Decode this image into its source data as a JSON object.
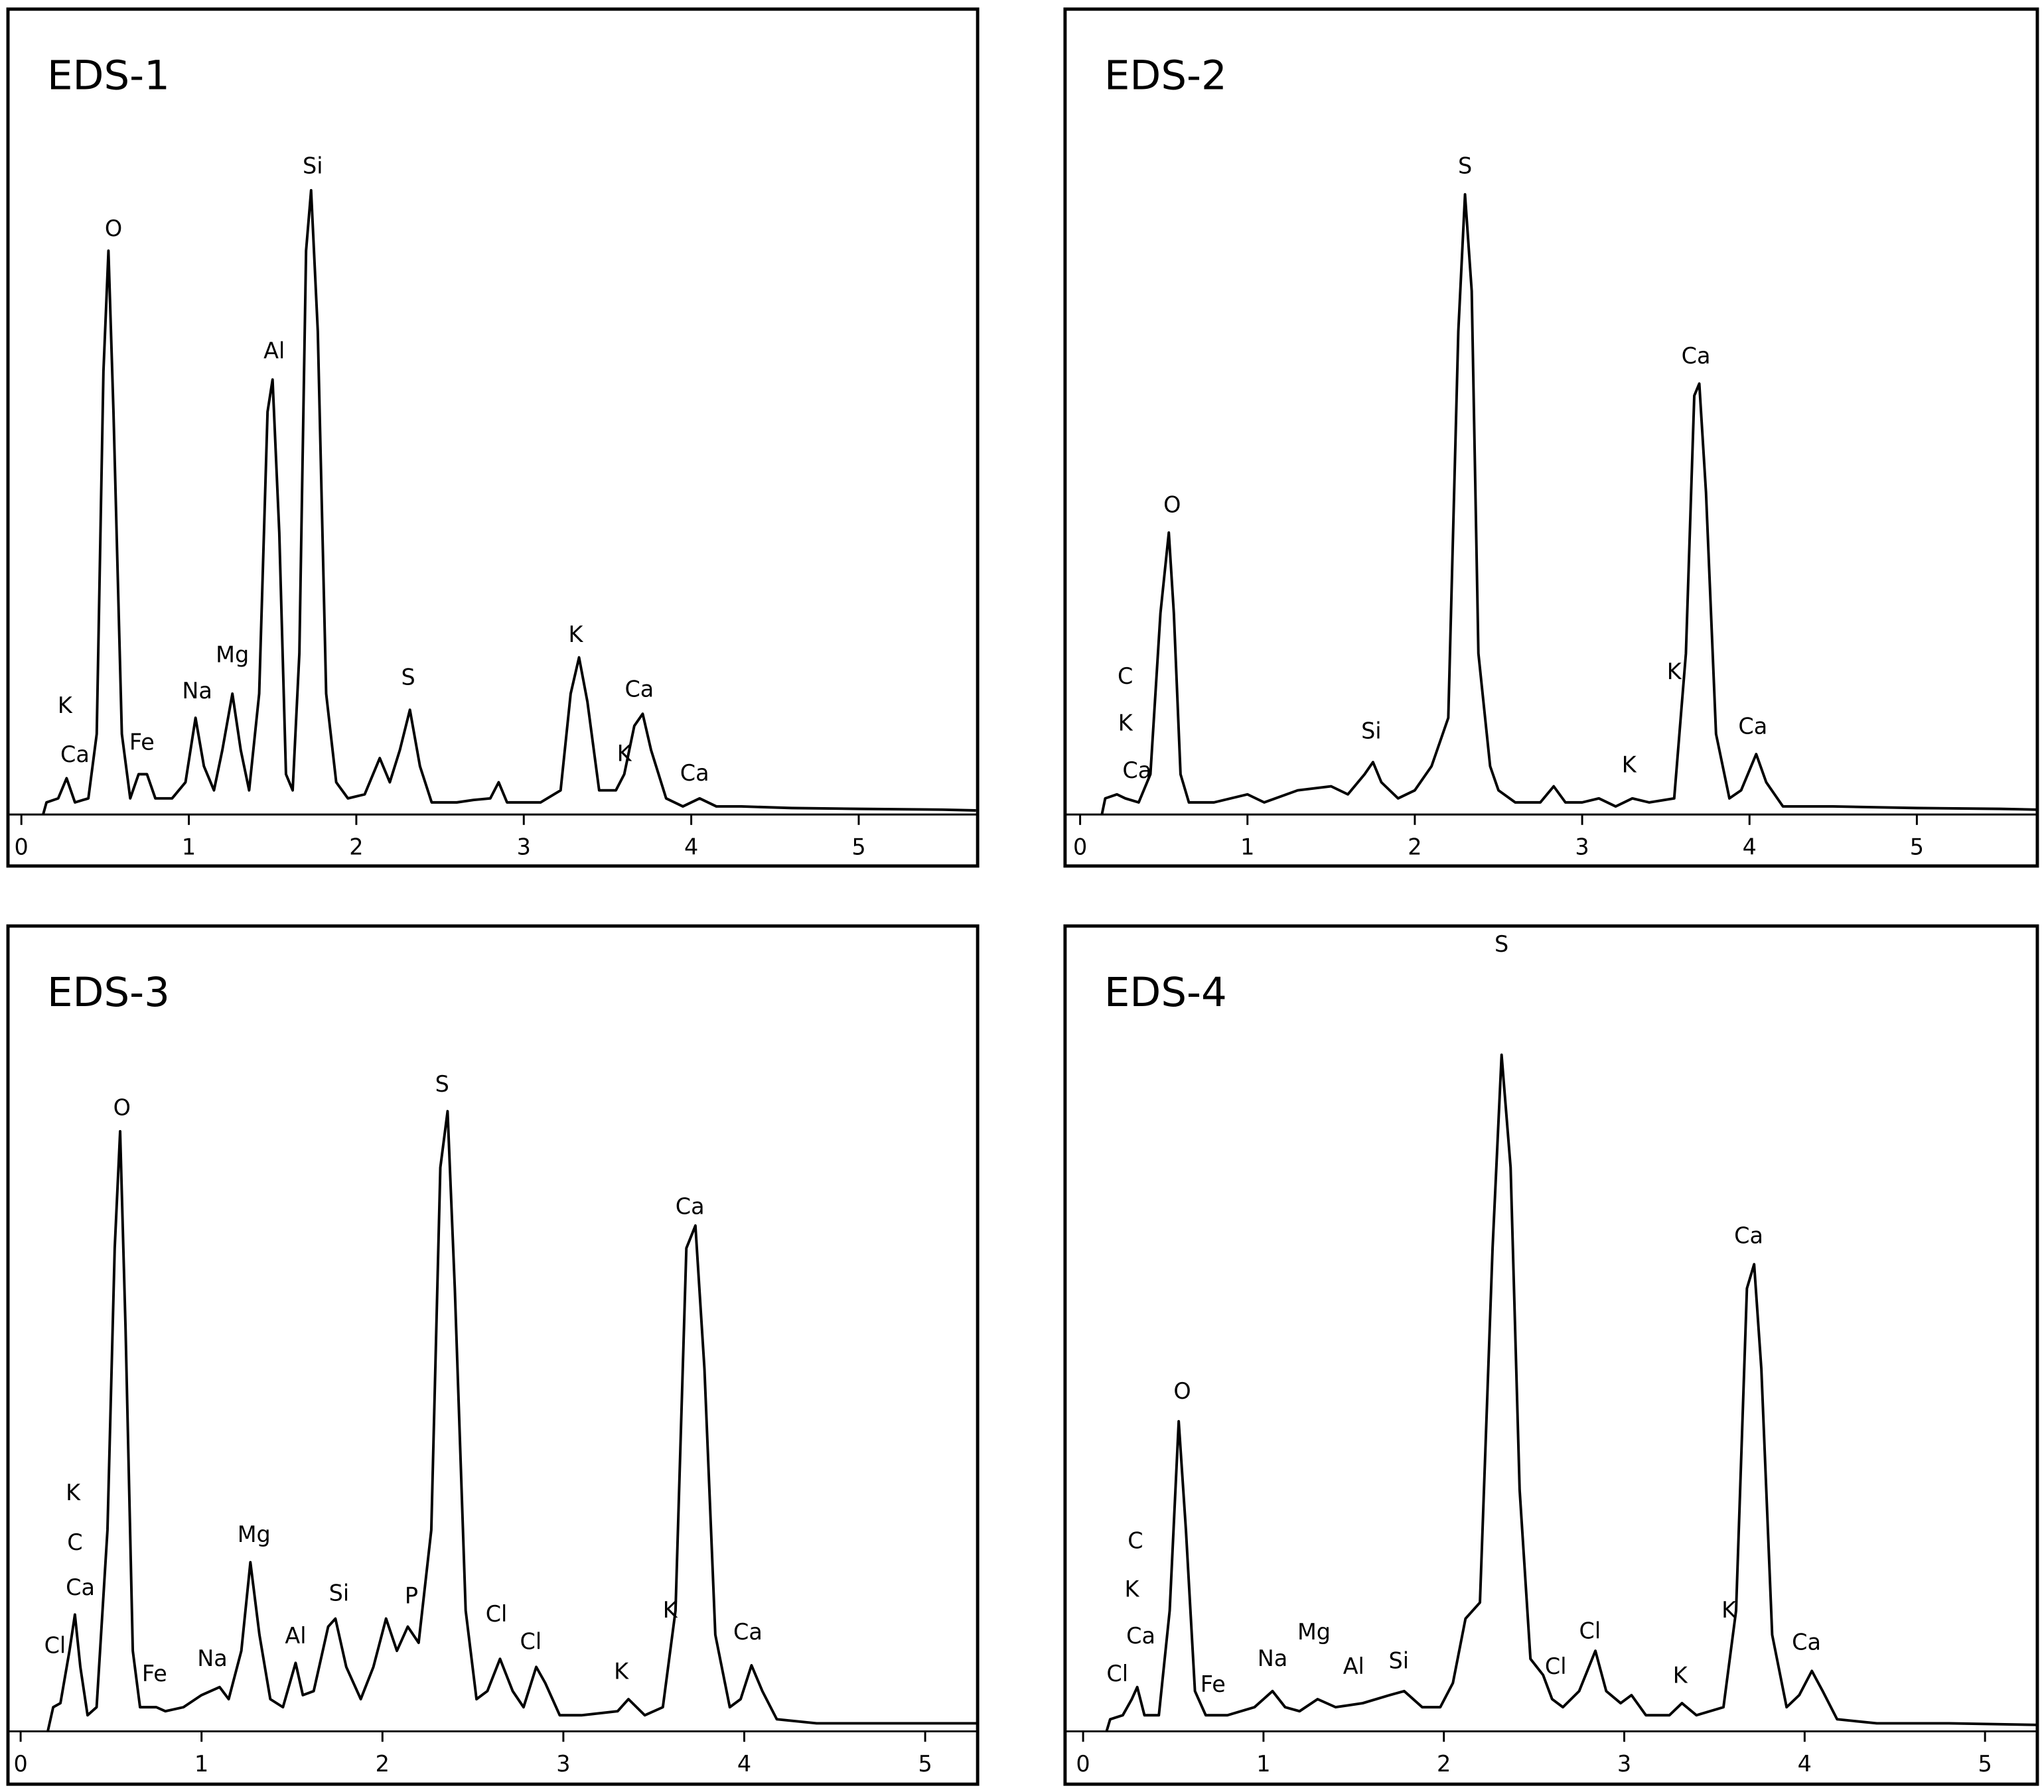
{
  "chart_data": [
    {
      "type": "line",
      "title": "EDS-1",
      "color": "#000000",
      "xlim": [
        -0.08,
        5.71
      ],
      "ylim": [
        0,
        100
      ],
      "xticks": [
        0,
        1,
        2,
        3,
        4,
        5
      ],
      "x": [
        0.13,
        0.15,
        0.22,
        0.27,
        0.32,
        0.4,
        0.45,
        0.49,
        0.52,
        0.55,
        0.6,
        0.65,
        0.7,
        0.75,
        0.8,
        0.9,
        0.98,
        1.04,
        1.09,
        1.15,
        1.2,
        1.26,
        1.31,
        1.36,
        1.42,
        1.47,
        1.5,
        1.54,
        1.58,
        1.62,
        1.66,
        1.7,
        1.73,
        1.77,
        1.82,
        1.88,
        1.95,
        2.05,
        2.14,
        2.2,
        2.26,
        2.32,
        2.38,
        2.45,
        2.6,
        2.7,
        2.8,
        2.85,
        2.9,
        3.1,
        3.22,
        3.28,
        3.33,
        3.38,
        3.45,
        3.55,
        3.6,
        3.66,
        3.71,
        3.76,
        3.85,
        3.95,
        4.05,
        4.15,
        4.3,
        4.6,
        5,
        5.5,
        5.7
      ],
      "values": [
        0,
        1.5,
        2,
        4.5,
        1.5,
        2,
        10,
        55,
        70,
        50,
        10,
        2,
        5,
        5,
        2,
        2,
        4,
        12,
        6,
        3,
        8,
        15,
        8,
        3,
        15,
        50,
        54,
        35,
        5,
        3,
        20,
        70,
        77.5,
        60,
        15,
        4,
        2,
        2.5,
        7,
        4,
        8,
        13,
        6,
        1.5,
        1.5,
        1.8,
        2,
        4,
        1.5,
        1.5,
        3,
        15,
        19.5,
        14,
        3,
        3,
        5,
        11,
        12.5,
        8,
        2,
        1,
        2,
        1,
        1,
        0.8,
        0.7,
        0.6,
        0.5
      ],
      "annotations": [
        {
          "text": "K",
          "x": 0.26,
          "y": 13.4
        },
        {
          "text": "Ca",
          "x": 0.32,
          "y": 7.3
        },
        {
          "text": "O",
          "x": 0.55,
          "y": 72.6
        },
        {
          "text": "Fe",
          "x": 0.72,
          "y": 8.8
        },
        {
          "text": "Na",
          "x": 1.05,
          "y": 15.2
        },
        {
          "text": "Mg",
          "x": 1.26,
          "y": 19.7
        },
        {
          "text": "Al",
          "x": 1.51,
          "y": 57.4
        },
        {
          "text": "Si",
          "x": 1.74,
          "y": 80.4
        },
        {
          "text": "S",
          "x": 2.31,
          "y": 16.9
        },
        {
          "text": "K",
          "x": 3.31,
          "y": 22.2
        },
        {
          "text": "K",
          "x": 3.6,
          "y": 7.4
        },
        {
          "text": "Ca",
          "x": 3.69,
          "y": 15.4
        },
        {
          "text": "Ca",
          "x": 4.02,
          "y": 5
        }
      ]
    },
    {
      "type": "line",
      "title": "EDS-2",
      "color": "#000000",
      "xlim": [
        -0.09,
        5.72
      ],
      "ylim": [
        0,
        100
      ],
      "xticks": [
        0,
        1,
        2,
        3,
        4,
        5
      ],
      "x": [
        0.13,
        0.15,
        0.22,
        0.27,
        0.35,
        0.42,
        0.48,
        0.53,
        0.56,
        0.6,
        0.65,
        0.8,
        1,
        1.1,
        1.3,
        1.5,
        1.6,
        1.7,
        1.75,
        1.8,
        1.9,
        2,
        2.1,
        2.2,
        2.26,
        2.3,
        2.34,
        2.38,
        2.45,
        2.5,
        2.6,
        2.75,
        2.83,
        2.9,
        3,
        3.1,
        3.2,
        3.3,
        3.4,
        3.55,
        3.62,
        3.67,
        3.7,
        3.74,
        3.8,
        3.88,
        3.95,
        4.04,
        4.1,
        4.2,
        4.5,
        5,
        5.5,
        5.72
      ],
      "values": [
        0,
        2,
        2.5,
        2,
        1.5,
        5,
        25,
        35,
        25,
        5,
        1.5,
        1.5,
        2.5,
        1.5,
        3,
        3.5,
        2.5,
        5,
        6.5,
        4,
        2,
        3,
        6,
        12,
        60,
        77,
        65,
        20,
        6,
        3,
        1.5,
        1.5,
        3.5,
        1.5,
        1.5,
        2,
        1,
        2,
        1.5,
        2,
        20,
        52,
        53.5,
        40,
        10,
        2,
        3,
        7.5,
        4,
        1,
        1,
        0.8,
        0.7,
        0.6
      ],
      "annotations": [
        {
          "text": "C",
          "x": 0.27,
          "y": 17
        },
        {
          "text": "K",
          "x": 0.27,
          "y": 11.2
        },
        {
          "text": "Ca",
          "x": 0.34,
          "y": 5.3
        },
        {
          "text": "O",
          "x": 0.55,
          "y": 38.3
        },
        {
          "text": "Si",
          "x": 1.74,
          "y": 10.2
        },
        {
          "text": "S",
          "x": 2.3,
          "y": 80.4
        },
        {
          "text": "Ca",
          "x": 3.68,
          "y": 56.8
        },
        {
          "text": "K",
          "x": 3.55,
          "y": 17.6
        },
        {
          "text": "K",
          "x": 3.28,
          "y": 6
        },
        {
          "text": "Ca",
          "x": 4.02,
          "y": 10.8
        }
      ]
    },
    {
      "type": "line",
      "title": "EDS-3",
      "color": "#000000",
      "xlim": [
        -0.07,
        5.29
      ],
      "ylim": [
        0,
        100
      ],
      "xticks": [
        0,
        1,
        2,
        3,
        4,
        5
      ],
      "x": [
        0.15,
        0.18,
        0.22,
        0.27,
        0.3,
        0.33,
        0.37,
        0.42,
        0.48,
        0.52,
        0.55,
        0.58,
        0.62,
        0.66,
        0.75,
        0.8,
        0.9,
        1,
        1.1,
        1.15,
        1.22,
        1.27,
        1.32,
        1.38,
        1.45,
        1.52,
        1.56,
        1.62,
        1.7,
        1.74,
        1.8,
        1.88,
        1.95,
        2.02,
        2.08,
        2.14,
        2.2,
        2.27,
        2.32,
        2.36,
        2.4,
        2.46,
        2.52,
        2.58,
        2.65,
        2.72,
        2.78,
        2.85,
        2.9,
        2.98,
        3.1,
        3.3,
        3.36,
        3.45,
        3.55,
        3.62,
        3.68,
        3.73,
        3.78,
        3.84,
        3.92,
        3.98,
        4.04,
        4.1,
        4.18,
        4.4,
        4.8,
        5.29
      ],
      "values": [
        0,
        3,
        3.5,
        10,
        14.5,
        8,
        2,
        3,
        25,
        60,
        74.5,
        50,
        10,
        3,
        3,
        2.5,
        3,
        4.5,
        5.5,
        4,
        10,
        21,
        12,
        4,
        3,
        8.5,
        4.5,
        5,
        13,
        14,
        8,
        4,
        8,
        14,
        10,
        13,
        11,
        25,
        70,
        77,
        55,
        15,
        4,
        5,
        9,
        5,
        3,
        8,
        6,
        2,
        2,
        2.5,
        4,
        2,
        3,
        15,
        60,
        62.8,
        45,
        12,
        3,
        4,
        8.2,
        5,
        1.5,
        1,
        1,
        1
      ],
      "annotations": [
        {
          "text": "Cl",
          "x": 0.19,
          "y": 10.5
        },
        {
          "text": "Ca",
          "x": 0.33,
          "y": 17.7
        },
        {
          "text": "C",
          "x": 0.3,
          "y": 23.3
        },
        {
          "text": "K",
          "x": 0.29,
          "y": 29.5
        },
        {
          "text": "O",
          "x": 0.56,
          "y": 77.3
        },
        {
          "text": "Fe",
          "x": 0.74,
          "y": 7
        },
        {
          "text": "Na",
          "x": 1.06,
          "y": 8.9
        },
        {
          "text": "Mg",
          "x": 1.29,
          "y": 24.3
        },
        {
          "text": "Al",
          "x": 1.52,
          "y": 11.7
        },
        {
          "text": "Si",
          "x": 1.76,
          "y": 17
        },
        {
          "text": "P",
          "x": 2.16,
          "y": 16.7
        },
        {
          "text": "S",
          "x": 2.33,
          "y": 80.2
        },
        {
          "text": "Cl",
          "x": 2.63,
          "y": 14.4
        },
        {
          "text": "Cl",
          "x": 2.82,
          "y": 11
        },
        {
          "text": "K",
          "x": 3.32,
          "y": 7.3
        },
        {
          "text": "K",
          "x": 3.59,
          "y": 14.9
        },
        {
          "text": "Ca",
          "x": 3.7,
          "y": 65
        },
        {
          "text": "Ca",
          "x": 4.02,
          "y": 12.2
        }
      ]
    },
    {
      "type": "line",
      "title": "EDS-4",
      "color": "#000000",
      "xlim": [
        -0.1,
        5.29
      ],
      "ylim": [
        0,
        100
      ],
      "xticks": [
        0,
        1,
        2,
        3,
        4,
        5
      ],
      "x": [
        0.13,
        0.15,
        0.22,
        0.27,
        0.3,
        0.34,
        0.42,
        0.48,
        0.53,
        0.57,
        0.62,
        0.68,
        0.8,
        0.95,
        1.05,
        1.12,
        1.2,
        1.3,
        1.4,
        1.55,
        1.7,
        1.78,
        1.88,
        1.98,
        2.05,
        2.12,
        2.2,
        2.27,
        2.32,
        2.37,
        2.42,
        2.48,
        2.55,
        2.6,
        2.66,
        2.75,
        2.84,
        2.9,
        2.98,
        3.04,
        3.12,
        3.25,
        3.32,
        3.4,
        3.55,
        3.62,
        3.68,
        3.72,
        3.76,
        3.82,
        3.9,
        3.97,
        4.04,
        4.1,
        4.18,
        4.4,
        4.8,
        5.29
      ],
      "values": [
        0,
        1.5,
        2,
        4,
        5.5,
        2,
        2,
        15,
        38.5,
        25,
        5,
        2,
        2,
        3,
        5,
        3,
        2.5,
        4,
        3,
        3.5,
        4.5,
        5,
        3,
        3,
        6,
        14,
        16,
        60,
        84,
        70,
        30,
        9,
        7,
        4,
        3,
        5,
        10,
        5,
        3.5,
        4.5,
        2,
        2,
        3.5,
        2,
        3,
        15,
        55,
        58,
        45,
        12,
        3,
        4.5,
        7.5,
        5,
        1.5,
        1,
        1,
        0.8
      ],
      "annotations": [
        {
          "text": "Cl",
          "x": 0.19,
          "y": 7
        },
        {
          "text": "Ca",
          "x": 0.32,
          "y": 11.7
        },
        {
          "text": "K",
          "x": 0.27,
          "y": 17.5
        },
        {
          "text": "C",
          "x": 0.29,
          "y": 23.5
        },
        {
          "text": "O",
          "x": 0.55,
          "y": 42.1
        },
        {
          "text": "Fe",
          "x": 0.72,
          "y": 5.7
        },
        {
          "text": "Na",
          "x": 1.05,
          "y": 8.9
        },
        {
          "text": "Mg",
          "x": 1.28,
          "y": 12.2
        },
        {
          "text": "Al",
          "x": 1.5,
          "y": 7.9
        },
        {
          "text": "Si",
          "x": 1.75,
          "y": 8.6
        },
        {
          "text": "S",
          "x": 2.32,
          "y": 97.6
        },
        {
          "text": "Cl",
          "x": 2.62,
          "y": 7.9
        },
        {
          "text": "Cl",
          "x": 2.81,
          "y": 12.3
        },
        {
          "text": "K",
          "x": 3.31,
          "y": 6.8
        },
        {
          "text": "K",
          "x": 3.58,
          "y": 14.9
        },
        {
          "text": "Ca",
          "x": 3.69,
          "y": 61.4
        },
        {
          "text": "Ca",
          "x": 4.01,
          "y": 10.9
        }
      ]
    }
  ]
}
